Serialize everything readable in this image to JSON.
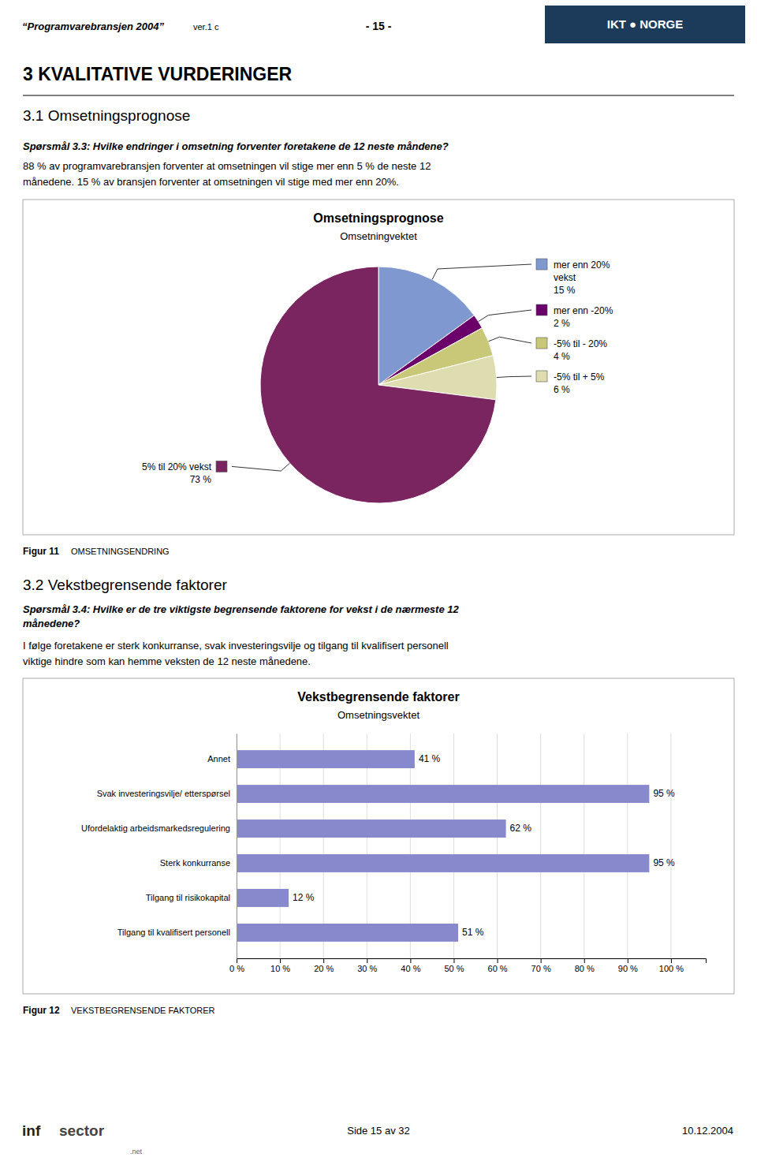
{
  "page": {
    "header_title": "“Programvarebransjen 2004”",
    "header_version": "ver.1 c",
    "header_page": "- 15 -",
    "logo": "IKT ● NORGE",
    "logo_color": "#1C3B5A",
    "box_border_color": "#AAAAAA",
    "section_title": "3   KVALITATIVE VURDERINGER",
    "subsection1_title": "3.1  Omsetningsprognose",
    "subsection1_question": "Spørsmål 3.3: Hvilke endringer i omsetning forventer foretakene de 12 neste måndene?",
    "subsection1_text": [
      "88 % av programvarebransjen forventer at omsetningen vil stige mer enn 5 % de neste 12",
      "månedene. 15 % av bransjen forventer at omsetningen vil stige med mer enn 20%."
    ],
    "figure11_label": "Figur 11",
    "figure11_caption": "OMSETNINGSENDRING",
    "subsection2_title": "3.2  Vekstbegrensende faktorer",
    "subsection2_question": [
      "Spørsmål 3.4: Hvilke er de tre viktigste begrensende faktorene for vekst i de nærmeste 12",
      "månedene?"
    ],
    "subsection2_text": [
      "I følge foretakene er sterk konkurranse, svak investeringsvilje og tilgang til kvalifisert personell",
      "viktige hindre som kan hemme veksten de 12 neste månedene."
    ],
    "figure12_label": "Figur 12",
    "figure12_caption": "VEKSTBEGRENSENDE FAKTORER",
    "footer_logo": [
      "inf",
      "sector",
      ".net"
    ],
    "footer_page": "Side 15 av 32",
    "footer_date": "10.12.2004"
  },
  "chart_data": [
    {
      "type": "pie",
      "title": "Omsetningsprognose",
      "subtitle": "Omsetningvektet",
      "categories": [
        "mer enn 20%\nvekst",
        "mer enn -20%",
        "-5% til - 20%",
        "-5% til + 5%",
        "5% til 20% vekst"
      ],
      "values": [
        15,
        2,
        4,
        6,
        73
      ],
      "value_labels": [
        "15 %",
        "2 %",
        "4 %",
        "6 %",
        "73 %"
      ],
      "colors": [
        "#8098D0",
        "#6B006B",
        "#C8C878",
        "#DDDDB0",
        "#7B2560"
      ],
      "data_labels": true
    },
    {
      "type": "bar",
      "orientation": "horizontal",
      "title": "Vekstbegrensende faktorer",
      "subtitle": "Omsetningsvektet",
      "categories": [
        "Annet",
        "Svak investeringsvilje/ etterspørsel",
        "Ufordelaktig arbeidsmarkedsregulering",
        "Sterk konkurranse",
        "Tilgang til risikokapital",
        "Tilgang til kvalifisert personell"
      ],
      "values": [
        41,
        95,
        62,
        95,
        12,
        51
      ],
      "value_labels": [
        "41 %",
        "95 %",
        "62 %",
        "95 %",
        "12 %",
        "51 %"
      ],
      "color": "#8888CC",
      "xlim": [
        0,
        108
      ],
      "xticks": [
        {
          "value": 0,
          "label": "0 %"
        },
        {
          "value": 10,
          "label": "10 %"
        },
        {
          "value": 20,
          "label": "20 %"
        },
        {
          "value": 30,
          "label": "30 %"
        },
        {
          "value": 40,
          "label": "40 %"
        },
        {
          "value": 50,
          "label": "50 %"
        },
        {
          "value": 60,
          "label": "60 %"
        },
        {
          "value": 70,
          "label": "70 %"
        },
        {
          "value": 80,
          "label": "80 %"
        },
        {
          "value": 90,
          "label": "90 %"
        },
        {
          "value": 100,
          "label": "100 %"
        }
      ],
      "grid": true,
      "data_labels": true
    }
  ]
}
